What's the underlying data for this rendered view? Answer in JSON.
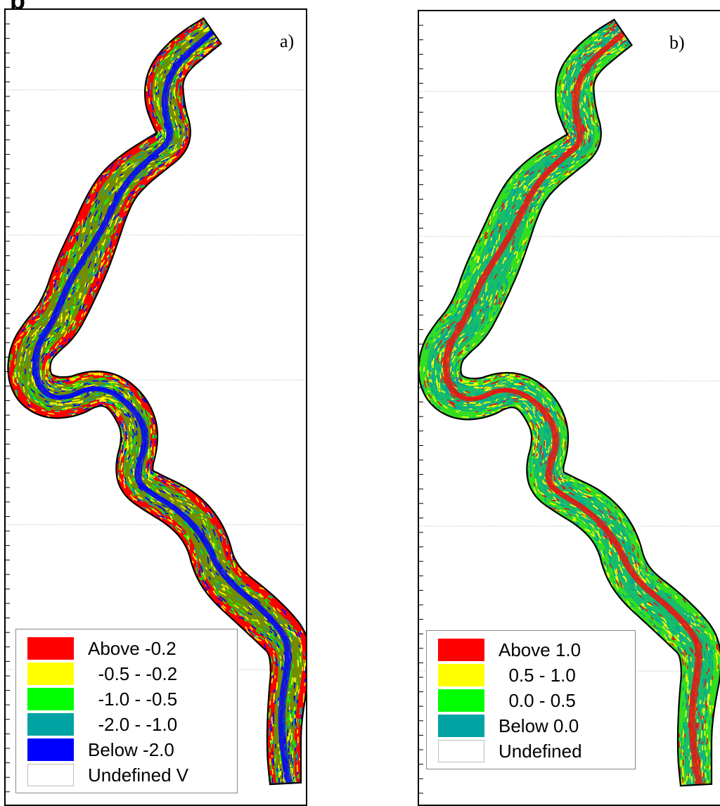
{
  "header_cut_text": "p",
  "panels": [
    {
      "label": "a)",
      "colors": {
        "base": "#ff0000",
        "channel": "#0000ff",
        "mix": "#00ff00",
        "accent": "#ffff00",
        "teal": "#00a3a3"
      },
      "legend": [
        {
          "text": "Above -0.2",
          "color": "#ff0000"
        },
        {
          "text": "  -0.5 - -0.2",
          "color": "#ffff00"
        },
        {
          "text": "  -1.0 - -0.5",
          "color": "#00ff00"
        },
        {
          "text": "  -2.0 - -1.0",
          "color": "#00a3a3"
        },
        {
          "text": "Below -2.0",
          "color": "#0000ff"
        },
        {
          "text": "Undefined V",
          "color": "#ffffff"
        }
      ]
    },
    {
      "label": "b)",
      "colors": {
        "base": "#33dd22",
        "channel": "#ee1111",
        "mix": "#00a3a3",
        "accent": "#ffff00",
        "teal": "#00a3a3"
      },
      "legend": [
        {
          "text": "Above 1.0",
          "color": "#ff0000"
        },
        {
          "text": "  0.5 - 1.0",
          "color": "#ffff00"
        },
        {
          "text": "  0.0 - 0.5",
          "color": "#00ff00"
        },
        {
          "text": "Below 0.0",
          "color": "#00a3a3"
        },
        {
          "text": "Undefined ",
          "color": "#ffffff"
        }
      ]
    }
  ]
}
